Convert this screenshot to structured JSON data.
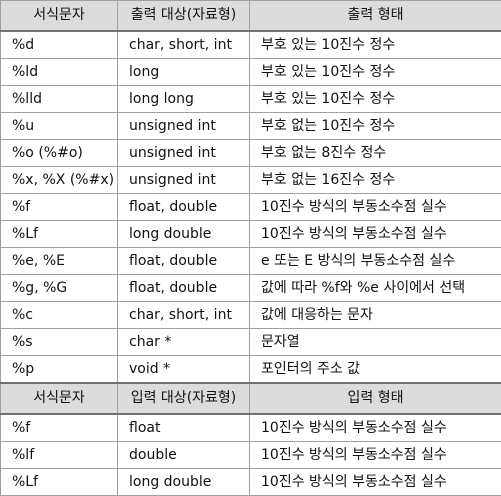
{
  "output_section": {
    "headers": [
      "서식문자",
      "출력 대상(자료형)",
      "출력 형태"
    ],
    "rows": [
      [
        "%d",
        "char, short, int",
        "부호 있는 10진수 정수"
      ],
      [
        "%ld",
        "long",
        "부호 있는 10진수 정수"
      ],
      [
        "%lld",
        "long long",
        "부호 있는 10진수 정수"
      ],
      [
        "%u",
        "unsigned int",
        "부호 없는 10진수 정수"
      ],
      [
        "%o (%#o)",
        "unsigned int",
        "부호 없는 8진수 정수"
      ],
      [
        "%x, %X (%#x)",
        "unsigned int",
        "부호 없는 16진수 정수"
      ],
      [
        "%f",
        "float, double",
        "10진수 방식의 부동소수점 실수"
      ],
      [
        "%Lf",
        "long double",
        "10진수 방식의 부동소수점 실수"
      ],
      [
        "%e, %E",
        "float, double",
        "e 또는 E 방식의 부동소수점 실수"
      ],
      [
        "%g, %G",
        "float, double",
        "값에 따라 %f와 %e 사이에서 선택"
      ],
      [
        "%c",
        "char, short, int",
        "값에 대응하는 문자"
      ],
      [
        "%s",
        "char *",
        "문자열"
      ],
      [
        "%p",
        "void *",
        "포인터의 주소 값"
      ]
    ]
  },
  "input_section": {
    "headers": [
      "서식문자",
      "입력 대상(자료형)",
      "입력 형태"
    ],
    "rows": [
      [
        "%f",
        "float",
        "10진수 방식의 부동소수점 실수"
      ],
      [
        "%lf",
        "double",
        "10진수 방식의 부동소수점 실수"
      ],
      [
        "%Lf",
        "long double",
        "10진수 방식의 부동소수점 실수"
      ]
    ]
  }
}
